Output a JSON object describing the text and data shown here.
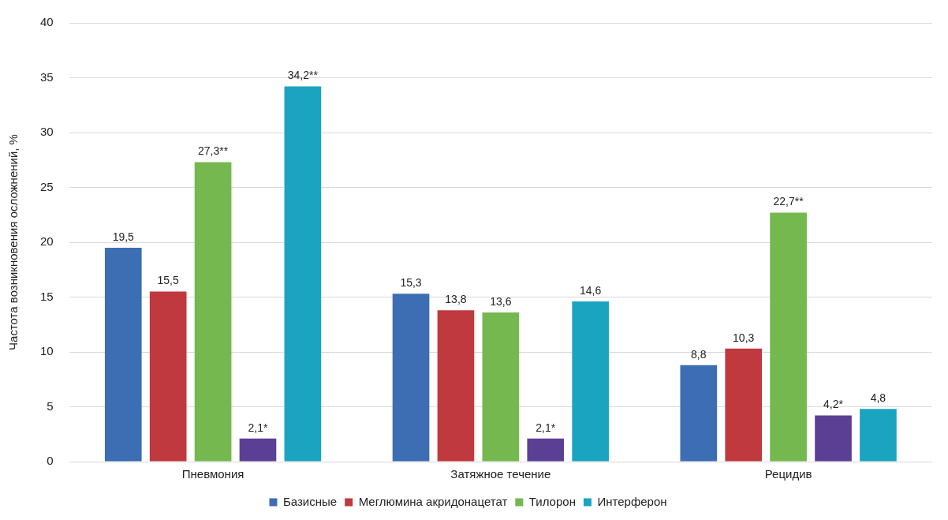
{
  "chart_data": {
    "type": "bar",
    "ylabel": "Частота возникновения осложнений, %",
    "categories": [
      "Пневмония",
      "Затяжное течение",
      "Рецидив"
    ],
    "series": [
      {
        "name": "Базисные",
        "color": "#3d6db3",
        "values": [
          19.5,
          15.3,
          8.8
        ],
        "value_labels": [
          "19,5",
          "15,3",
          "8,8"
        ]
      },
      {
        "name": "Меглюмина акридонацетат",
        "color": "#c0393f",
        "values": [
          15.5,
          13.8,
          10.3
        ],
        "value_labels": [
          "15,5",
          "13,8",
          "10,3"
        ]
      },
      {
        "name": "Тилорон",
        "color": "#74b84f",
        "values": [
          27.3,
          13.6,
          22.7
        ],
        "value_labels": [
          "27,3**",
          "13,6",
          "22,7**"
        ]
      },
      {
        "color": "#5b3f95",
        "values": [
          2.1,
          2.1,
          4.2
        ],
        "value_labels": [
          "2,1*",
          "2,1*",
          "4,2*"
        ]
      },
      {
        "name": "Интерферон",
        "color": "#1ba4bf",
        "values": [
          34.2,
          14.6,
          4.8
        ],
        "value_labels": [
          "34,2**",
          "14,6",
          "4,8"
        ]
      }
    ],
    "ylim": [
      0,
      40
    ],
    "yticks": [
      0,
      5,
      10,
      15,
      20,
      25,
      30,
      35,
      40
    ],
    "grid": "y",
    "legend": "bottom"
  }
}
